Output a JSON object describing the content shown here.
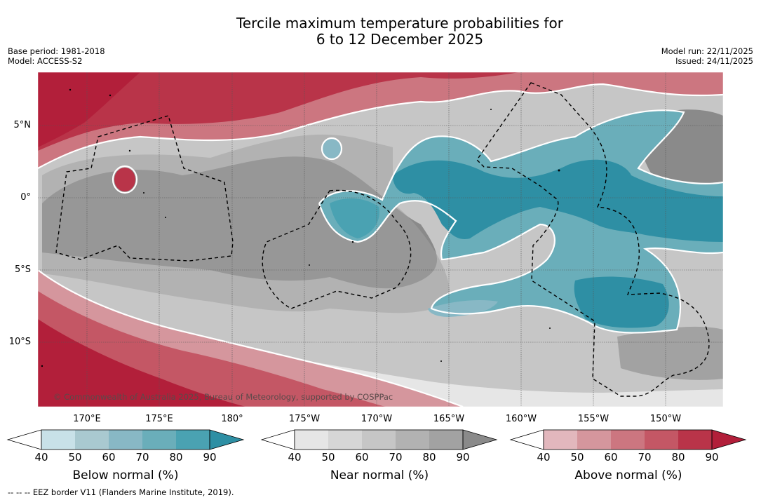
{
  "header": {
    "title_line1": "Tercile maximum temperature probabilities for",
    "title_line2": "6 to 12 December 2025",
    "base_period": "Base period: 1981-2018",
    "model": "Model: ACCESS-S2",
    "model_run": "Model run: 22/11/2025",
    "issued": "Issued: 24/11/2025"
  },
  "map": {
    "lat_labels": [
      "5°N",
      "0°",
      "5°S",
      "10°S"
    ],
    "lon_labels": [
      "170°E",
      "175°E",
      "180°",
      "175°W",
      "170°W",
      "165°W",
      "160°W",
      "155°W",
      "150°W"
    ],
    "copyright": "© Commonwealth of Australia 2025, Bureau of Meteorology, supported by COSPPac",
    "colors": {
      "below": [
        "#c8e1e8",
        "#a9c9d0",
        "#88b8c5",
        "#6aaeba",
        "#4aa2b2",
        "#2e8fa4"
      ],
      "near": [
        "#e6e6e6",
        "#d6d6d6",
        "#c6c6c6",
        "#b2b2b2",
        "#a2a2a2",
        "#8a8a8a"
      ],
      "above": [
        "#e2b7bd",
        "#d5969d",
        "#cc7680",
        "#c45765",
        "#b93449",
        "#b21f3a"
      ],
      "eez_line": "#000000"
    }
  },
  "colorbars": [
    {
      "id": "below",
      "title": "Below normal (%)",
      "ticks": [
        "40",
        "50",
        "60",
        "70",
        "80",
        "90"
      ]
    },
    {
      "id": "near",
      "title": "Near normal (%)",
      "ticks": [
        "40",
        "50",
        "60",
        "70",
        "80",
        "90"
      ]
    },
    {
      "id": "above",
      "title": "Above normal (%)",
      "ticks": [
        "40",
        "50",
        "60",
        "70",
        "80",
        "90"
      ]
    }
  ],
  "footnote": "--  --  -- EEZ border V11 (Flanders Marine Institute, 2019)."
}
